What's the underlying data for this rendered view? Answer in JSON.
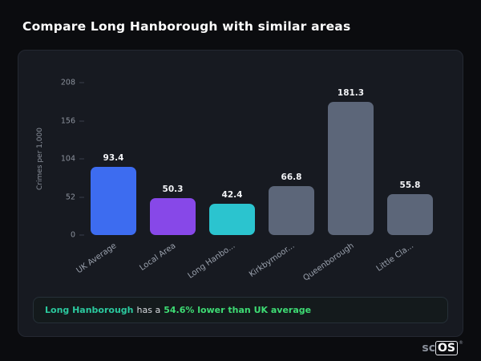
{
  "header": {
    "title": "Compare Long Hanborough with similar areas"
  },
  "chart_data": {
    "type": "bar",
    "title": "Compare Long Hanborough with similar areas",
    "xlabel": "",
    "ylabel": "Crimes per 1,000",
    "ylim": [
      0,
      208
    ],
    "yticks": [
      208,
      156,
      104,
      52,
      0
    ],
    "grid": false,
    "legend": false,
    "categories": [
      "UK Average",
      "Local Area",
      "Long Hanbo...",
      "Kirkbymoor...",
      "Queenborough",
      "Little Cla..."
    ],
    "values": [
      93.4,
      50.3,
      42.4,
      66.8,
      181.3,
      55.8
    ],
    "value_labels": [
      "93.4",
      "50.3",
      "42.4",
      "66.8",
      "181.3",
      "55.8"
    ],
    "bar_colors": [
      "#3d6cf0",
      "#8748e8",
      "#2bc4cf",
      "#5c6679",
      "#5c6679",
      "#5c6679"
    ],
    "highlight_colors": {
      "uk_average": "#3d6cf0",
      "local_area": "#8748e8",
      "selected_area": "#2bc4cf",
      "comparison": "#5c6679"
    }
  },
  "summary": {
    "highlight_name": "Long Hanborough",
    "text_mid": "has a",
    "highlight_stat": "54.6% lower than UK average",
    "name_color": "#2bc99e",
    "stat_color": "#3edc74"
  },
  "brand": {
    "prefix": "sc",
    "boxed": "OS",
    "registered": "®"
  }
}
